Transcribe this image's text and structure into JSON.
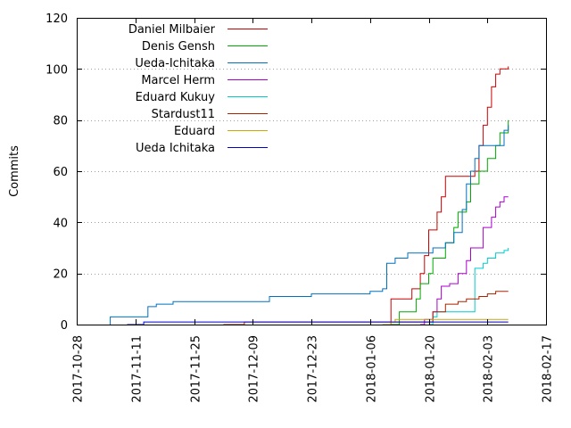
{
  "chart_data": {
    "type": "line",
    "style": "step",
    "title": "",
    "xlabel": "",
    "ylabel": "Commits",
    "ylim": [
      0,
      120
    ],
    "yticks": [
      0,
      20,
      40,
      60,
      80,
      100,
      120
    ],
    "xlim": [
      "2017-10-28",
      "2018-02-17"
    ],
    "xticks": [
      "2017-10-28",
      "2017-11-11",
      "2017-11-25",
      "2017-12-09",
      "2017-12-23",
      "2018-01-06",
      "2018-01-20",
      "2018-02-03",
      "2018-02-17"
    ],
    "grid": "horizontal dotted",
    "legend_position": "top-left",
    "series": [
      {
        "name": "Daniel Milbaier",
        "color": "#cc0000",
        "points": [
          [
            "2018-01-11",
            0
          ],
          [
            "2018-01-11",
            10
          ],
          [
            "2018-01-16",
            10
          ],
          [
            "2018-01-16",
            14
          ],
          [
            "2018-01-18",
            20
          ],
          [
            "2018-01-19",
            27
          ],
          [
            "2018-01-20",
            37
          ],
          [
            "2018-01-22",
            44
          ],
          [
            "2018-01-23",
            50
          ],
          [
            "2018-01-24",
            58
          ],
          [
            "2018-01-31",
            58
          ],
          [
            "2018-01-31",
            60
          ],
          [
            "2018-02-01",
            70
          ],
          [
            "2018-02-02",
            78
          ],
          [
            "2018-02-03",
            85
          ],
          [
            "2018-02-04",
            93
          ],
          [
            "2018-02-05",
            98
          ],
          [
            "2018-02-06",
            100
          ],
          [
            "2018-02-08",
            101
          ]
        ]
      },
      {
        "name": "Denis Gensh",
        "color": "#00aa00",
        "points": [
          [
            "2018-01-11",
            0
          ],
          [
            "2018-01-13",
            0
          ],
          [
            "2018-01-13",
            5
          ],
          [
            "2018-01-16",
            5
          ],
          [
            "2018-01-17",
            10
          ],
          [
            "2018-01-18",
            16
          ],
          [
            "2018-01-20",
            20
          ],
          [
            "2018-01-21",
            26
          ],
          [
            "2018-01-24",
            26
          ],
          [
            "2018-01-24",
            32
          ],
          [
            "2018-01-26",
            38
          ],
          [
            "2018-01-27",
            44
          ],
          [
            "2018-01-29",
            48
          ],
          [
            "2018-01-30",
            55
          ],
          [
            "2018-02-01",
            60
          ],
          [
            "2018-02-03",
            65
          ],
          [
            "2018-02-05",
            70
          ],
          [
            "2018-02-06",
            75
          ],
          [
            "2018-02-07",
            75
          ],
          [
            "2018-02-08",
            80
          ]
        ]
      },
      {
        "name": "Ueda-Ichitaka",
        "color": "#0070c0",
        "points": [
          [
            "2017-11-05",
            0
          ],
          [
            "2017-11-05",
            3
          ],
          [
            "2017-11-13",
            3
          ],
          [
            "2017-11-14",
            7
          ],
          [
            "2017-11-16",
            8
          ],
          [
            "2017-11-20",
            9
          ],
          [
            "2017-12-09",
            9
          ],
          [
            "2017-12-13",
            11
          ],
          [
            "2017-12-23",
            12
          ],
          [
            "2018-01-06",
            13
          ],
          [
            "2018-01-09",
            14
          ],
          [
            "2018-01-10",
            24
          ],
          [
            "2018-01-12",
            26
          ],
          [
            "2018-01-15",
            28
          ],
          [
            "2018-01-20",
            28
          ],
          [
            "2018-01-21",
            30
          ],
          [
            "2018-01-24",
            32
          ],
          [
            "2018-01-26",
            36
          ],
          [
            "2018-01-28",
            45
          ],
          [
            "2018-01-29",
            55
          ],
          [
            "2018-01-30",
            60
          ],
          [
            "2018-01-31",
            65
          ],
          [
            "2018-02-01",
            70
          ],
          [
            "2018-02-05",
            70
          ],
          [
            "2018-02-07",
            76
          ],
          [
            "2018-02-08",
            78
          ]
        ]
      },
      {
        "name": "Marcel Herm",
        "color": "#aa00cc",
        "points": [
          [
            "2018-01-18",
            0
          ],
          [
            "2018-01-19",
            2
          ],
          [
            "2018-01-21",
            5
          ],
          [
            "2018-01-22",
            10
          ],
          [
            "2018-01-23",
            15
          ],
          [
            "2018-01-25",
            16
          ],
          [
            "2018-01-27",
            20
          ],
          [
            "2018-01-29",
            25
          ],
          [
            "2018-01-30",
            30
          ],
          [
            "2018-02-02",
            38
          ],
          [
            "2018-02-04",
            42
          ],
          [
            "2018-02-05",
            46
          ],
          [
            "2018-02-06",
            48
          ],
          [
            "2018-02-07",
            50
          ],
          [
            "2018-02-08",
            50
          ]
        ]
      },
      {
        "name": "Eduard Kukuy",
        "color": "#00cccc",
        "points": [
          [
            "2018-01-20",
            0
          ],
          [
            "2018-01-21",
            3
          ],
          [
            "2018-01-22",
            5
          ],
          [
            "2018-01-30",
            5
          ],
          [
            "2018-01-31",
            15
          ],
          [
            "2018-01-31",
            22
          ],
          [
            "2018-02-02",
            24
          ],
          [
            "2018-02-03",
            26
          ],
          [
            "2018-02-05",
            28
          ],
          [
            "2018-02-07",
            29
          ],
          [
            "2018-02-08",
            30
          ]
        ]
      },
      {
        "name": "Stardust11",
        "color": "#aa2200",
        "points": [
          [
            "2017-12-02",
            0
          ],
          [
            "2017-12-07",
            1
          ],
          [
            "2018-01-20",
            1
          ],
          [
            "2018-01-21",
            5
          ],
          [
            "2018-01-24",
            8
          ],
          [
            "2018-01-27",
            9
          ],
          [
            "2018-01-29",
            10
          ],
          [
            "2018-02-01",
            11
          ],
          [
            "2018-02-03",
            12
          ],
          [
            "2018-02-05",
            13
          ],
          [
            "2018-02-08",
            13
          ]
        ]
      },
      {
        "name": "Eduard",
        "color": "#ccaa00",
        "points": [
          [
            "2018-01-09",
            0
          ],
          [
            "2018-01-11",
            1
          ],
          [
            "2018-01-12",
            2
          ],
          [
            "2018-02-08",
            2
          ]
        ]
      },
      {
        "name": "Ueda Ichitaka",
        "color": "#0000cc",
        "points": [
          [
            "2017-11-09",
            0
          ],
          [
            "2017-11-13",
            1
          ],
          [
            "2018-02-08",
            1
          ]
        ]
      }
    ]
  }
}
